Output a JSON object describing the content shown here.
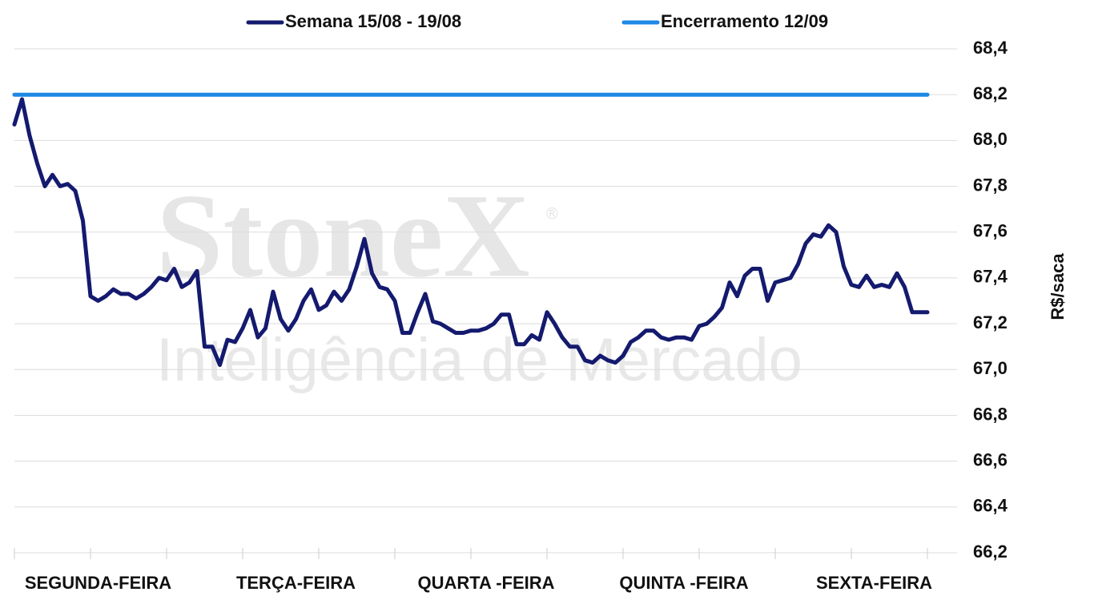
{
  "chart_data": {
    "type": "line",
    "watermark": [
      "StoneX",
      "Inteligência de Mercado"
    ],
    "watermark_mark": "®",
    "y_label": "R$/saca",
    "categories": [
      null,
      null,
      null,
      null,
      null,
      null,
      null,
      null,
      null,
      null,
      null,
      "SEGUNDA-FEIRA",
      null,
      null,
      null,
      null,
      null,
      null,
      null,
      null,
      null,
      null,
      null,
      null,
      null,
      null,
      null,
      null,
      null,
      null,
      null,
      null,
      null,
      null,
      null,
      null,
      null,
      "TERÇA-FEIRA",
      null,
      null,
      null,
      null,
      null,
      null,
      null,
      null,
      null,
      null,
      null,
      null,
      null,
      null,
      null,
      null,
      null,
      null,
      null,
      null,
      null,
      null,
      null,
      null,
      "QUARTA -FEIRA",
      null,
      null,
      null,
      null,
      null,
      null,
      null,
      null,
      null,
      null,
      null,
      null,
      null,
      null,
      null,
      null,
      null,
      null,
      null,
      null,
      null,
      null,
      null,
      null,
      null,
      "QUINTA -FEIRA",
      null,
      null,
      null,
      null,
      null,
      null,
      null,
      null,
      null,
      null,
      null,
      null,
      null,
      null,
      null,
      null,
      null,
      null,
      null,
      null,
      null,
      null,
      null,
      null,
      "SEXTA-FEIRA",
      null,
      null,
      null,
      null,
      null,
      null,
      null
    ],
    "series": [
      {
        "name": "Semana 15/08 - 19/08",
        "color": "#141a6e",
        "values": [
          68.07,
          68.18,
          68.02,
          67.9,
          67.8,
          67.85,
          67.8,
          67.81,
          67.78,
          67.65,
          67.32,
          67.3,
          67.32,
          67.35,
          67.33,
          67.33,
          67.31,
          67.33,
          67.36,
          67.4,
          67.39,
          67.44,
          67.36,
          67.38,
          67.43,
          67.1,
          67.1,
          67.02,
          67.13,
          67.12,
          67.18,
          67.26,
          67.14,
          67.18,
          67.34,
          67.22,
          67.17,
          67.22,
          67.3,
          67.35,
          67.26,
          67.28,
          67.34,
          67.3,
          67.35,
          67.45,
          67.57,
          67.42,
          67.36,
          67.35,
          67.3,
          67.16,
          67.16,
          67.25,
          67.33,
          67.21,
          67.2,
          67.18,
          67.16,
          67.16,
          67.17,
          67.17,
          67.18,
          67.2,
          67.24,
          67.24,
          67.11,
          67.11,
          67.15,
          67.13,
          67.25,
          67.2,
          67.14,
          67.1,
          67.1,
          67.04,
          67.03,
          67.06,
          67.04,
          67.03,
          67.06,
          67.12,
          67.14,
          67.17,
          67.17,
          67.14,
          67.13,
          67.14,
          67.14,
          67.13,
          67.19,
          67.2,
          67.23,
          67.27,
          67.38,
          67.32,
          67.41,
          67.44,
          67.44,
          67.3,
          67.38,
          67.39,
          67.4,
          67.46,
          67.55,
          67.59,
          67.58,
          67.63,
          67.6,
          67.45,
          67.37,
          67.36,
          67.41,
          67.36,
          67.37,
          67.36,
          67.42,
          67.36,
          67.25,
          67.25,
          67.25
        ]
      },
      {
        "name": "Encerramento 12/09",
        "color": "#1e88e5",
        "values": [
          68.2,
          68.2,
          68.2,
          68.2,
          68.2,
          68.2,
          68.2,
          68.2,
          68.2,
          68.2,
          68.2,
          68.2,
          68.2,
          68.2,
          68.2,
          68.2,
          68.2,
          68.2,
          68.2,
          68.2,
          68.2,
          68.2,
          68.2,
          68.2,
          68.2,
          68.2,
          68.2,
          68.2,
          68.2,
          68.2,
          68.2,
          68.2,
          68.2,
          68.2,
          68.2,
          68.2,
          68.2,
          68.2,
          68.2,
          68.2,
          68.2,
          68.2,
          68.2,
          68.2,
          68.2,
          68.2,
          68.2,
          68.2,
          68.2,
          68.2,
          68.2,
          68.2,
          68.2,
          68.2,
          68.2,
          68.2,
          68.2,
          68.2,
          68.2,
          68.2,
          68.2,
          68.2,
          68.2,
          68.2,
          68.2,
          68.2,
          68.2,
          68.2,
          68.2,
          68.2,
          68.2,
          68.2,
          68.2,
          68.2,
          68.2,
          68.2,
          68.2,
          68.2,
          68.2,
          68.2,
          68.2,
          68.2,
          68.2,
          68.2,
          68.2,
          68.2,
          68.2,
          68.2,
          68.2,
          68.2,
          68.2,
          68.2,
          68.2,
          68.2,
          68.2,
          68.2,
          68.2,
          68.2,
          68.2,
          68.2,
          68.2,
          68.2,
          68.2,
          68.2,
          68.2,
          68.2,
          68.2,
          68.2,
          68.2,
          68.2,
          68.2,
          68.2,
          68.2,
          68.2,
          68.2,
          68.2,
          68.2,
          68.2,
          68.2,
          68.2,
          68.2
        ]
      }
    ],
    "ylim": [
      66.2,
      68.4
    ],
    "yticks": [
      {
        "value": 66.2,
        "label": "66,2"
      },
      {
        "value": 66.4,
        "label": "66,4"
      },
      {
        "value": 66.6,
        "label": "66,6"
      },
      {
        "value": 66.8,
        "label": "66,8"
      },
      {
        "value": 67.0,
        "label": "67,0"
      },
      {
        "value": 67.2,
        "label": "67,2"
      },
      {
        "value": 67.4,
        "label": "67,4"
      },
      {
        "value": 67.6,
        "label": "67,6"
      },
      {
        "value": 67.8,
        "label": "67,8"
      },
      {
        "value": 68.0,
        "label": "68,0"
      },
      {
        "value": 68.2,
        "label": "68,2"
      },
      {
        "value": 68.4,
        "label": "68,4"
      }
    ],
    "grid": true,
    "legend": "top"
  }
}
